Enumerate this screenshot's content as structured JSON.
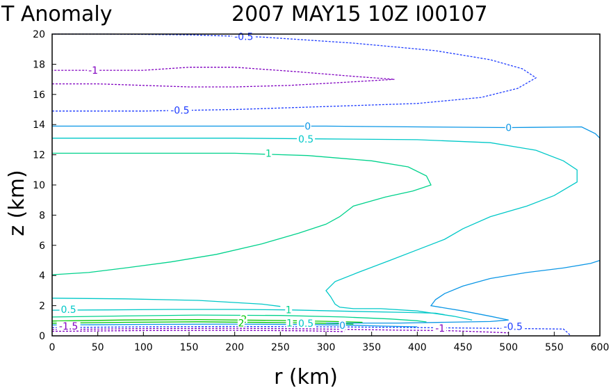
{
  "chart_data": {
    "type": "contour",
    "title_left": "T Anomaly",
    "title_right": "2007 MAY15 10Z   I00107",
    "xlabel": "r (km)",
    "ylabel": "z (km)",
    "xlim": [
      0,
      600
    ],
    "ylim": [
      0,
      20
    ],
    "x_ticks": [
      "0",
      "50",
      "100",
      "150",
      "200",
      "250",
      "300",
      "350",
      "400",
      "450",
      "500",
      "550",
      "600"
    ],
    "y_ticks": [
      "0",
      "2",
      "4",
      "6",
      "8",
      "10",
      "12",
      "14",
      "16",
      "18",
      "20"
    ],
    "x_tick_values": [
      0,
      50,
      100,
      150,
      200,
      250,
      300,
      350,
      400,
      450,
      500,
      550,
      600
    ],
    "y_tick_values": [
      0,
      2,
      4,
      6,
      8,
      10,
      12,
      14,
      16,
      18,
      20
    ],
    "colors": {
      "neg1_5": "#8000c0",
      "neg1": "#8000c0",
      "neg0_5": "#1e3cff",
      "zero": "#0a96e6",
      "pos0_5": "#00c8c8",
      "pos1": "#00d28c",
      "pos2": "#00c800"
    },
    "contours": [
      {
        "level": "-0.5",
        "color_key": "neg0_5",
        "dashed": true,
        "closed": false,
        "points": [
          [
            0,
            14.9
          ],
          [
            100,
            14.9
          ],
          [
            200,
            15.0
          ],
          [
            300,
            15.2
          ],
          [
            400,
            15.4
          ],
          [
            470,
            15.8
          ],
          [
            510,
            16.4
          ],
          [
            530,
            17.1
          ],
          [
            515,
            17.7
          ],
          [
            480,
            18.3
          ],
          [
            420,
            18.9
          ],
          [
            330,
            19.4
          ],
          [
            230,
            19.8
          ],
          [
            150,
            19.95
          ],
          [
            60,
            20.0
          ],
          [
            0,
            20.0
          ]
        ]
      },
      {
        "level": "-1",
        "color_key": "neg1",
        "dashed": true,
        "closed": false,
        "points": [
          [
            0,
            16.7
          ],
          [
            50,
            16.7
          ],
          [
            100,
            16.6
          ],
          [
            150,
            16.5
          ],
          [
            200,
            16.5
          ],
          [
            260,
            16.6
          ],
          [
            320,
            16.8
          ],
          [
            375,
            17.0
          ],
          [
            330,
            17.2
          ],
          [
            270,
            17.5
          ],
          [
            200,
            17.8
          ],
          [
            150,
            17.8
          ],
          [
            100,
            17.6
          ],
          [
            50,
            17.6
          ],
          [
            0,
            17.6
          ]
        ]
      },
      {
        "level": "0",
        "color_key": "zero",
        "dashed": false,
        "closed": false,
        "points": [
          [
            0,
            13.9
          ],
          [
            100,
            13.9
          ],
          [
            200,
            13.9
          ],
          [
            300,
            13.9
          ],
          [
            400,
            13.85
          ],
          [
            500,
            13.8
          ],
          [
            580,
            13.85
          ],
          [
            595,
            13.4
          ],
          [
            600,
            13.1
          ]
        ]
      },
      {
        "level": "0.5",
        "color_key": "pos0_5",
        "dashed": false,
        "closed": false,
        "points": [
          [
            0,
            13.1
          ],
          [
            100,
            13.1
          ],
          [
            200,
            13.1
          ],
          [
            300,
            13.05
          ],
          [
            400,
            13.0
          ],
          [
            480,
            12.8
          ],
          [
            530,
            12.3
          ],
          [
            560,
            11.6
          ],
          [
            575,
            11.0
          ],
          [
            575,
            10.2
          ],
          [
            550,
            9.3
          ],
          [
            520,
            8.6
          ],
          [
            480,
            7.9
          ],
          [
            450,
            7.1
          ],
          [
            430,
            6.4
          ],
          [
            400,
            5.7
          ],
          [
            370,
            5.0
          ],
          [
            335,
            4.2
          ],
          [
            310,
            3.6
          ],
          [
            300,
            3.0
          ],
          [
            305,
            2.6
          ],
          [
            310,
            2.1
          ],
          [
            315,
            1.9
          ],
          [
            330,
            1.8
          ],
          [
            360,
            1.8
          ],
          [
            400,
            1.65
          ],
          [
            440,
            1.3
          ],
          [
            460,
            1.05
          ]
        ]
      },
      {
        "level": "1",
        "color_key": "pos1",
        "dashed": false,
        "closed": false,
        "points": [
          [
            0,
            12.1
          ],
          [
            100,
            12.1
          ],
          [
            200,
            12.1
          ],
          [
            280,
            11.95
          ],
          [
            350,
            11.6
          ],
          [
            390,
            11.2
          ],
          [
            410,
            10.6
          ],
          [
            415,
            10.0
          ],
          [
            395,
            9.6
          ],
          [
            365,
            9.2
          ],
          [
            330,
            8.6
          ],
          [
            315,
            7.9
          ],
          [
            300,
            7.4
          ],
          [
            270,
            6.8
          ],
          [
            230,
            6.1
          ],
          [
            180,
            5.4
          ],
          [
            130,
            4.9
          ],
          [
            80,
            4.5
          ],
          [
            40,
            4.2
          ],
          [
            0,
            4.05
          ]
        ]
      },
      {
        "level": "0.5",
        "color_key": "pos0_5",
        "dashed": false,
        "closed": false,
        "points": [
          [
            0,
            2.5
          ],
          [
            80,
            2.45
          ],
          [
            160,
            2.35
          ],
          [
            230,
            2.1
          ],
          [
            250,
            1.95
          ]
        ]
      },
      {
        "level": "0.5",
        "color_key": "pos0_5",
        "dashed": false,
        "closed": false,
        "points": [
          [
            0,
            1.7
          ],
          [
            60,
            1.72
          ],
          [
            130,
            1.75
          ],
          [
            200,
            1.75
          ],
          [
            260,
            1.72
          ],
          [
            330,
            1.62
          ],
          [
            390,
            1.55
          ],
          [
            420,
            1.5
          ],
          [
            430,
            1.4
          ]
        ]
      },
      {
        "level": "1",
        "color_key": "pos1",
        "dashed": false,
        "closed": false,
        "points": [
          [
            0,
            1.25
          ],
          [
            80,
            1.32
          ],
          [
            160,
            1.38
          ],
          [
            250,
            1.35
          ],
          [
            320,
            1.25
          ],
          [
            370,
            1.12
          ],
          [
            400,
            1.0
          ],
          [
            410,
            0.92
          ]
        ]
      },
      {
        "level": "2",
        "color_key": "pos2",
        "dashed": false,
        "closed": false,
        "points": [
          [
            0,
            0.98
          ],
          [
            80,
            1.05
          ],
          [
            160,
            1.08
          ],
          [
            250,
            1.02
          ],
          [
            310,
            0.95
          ],
          [
            340,
            0.9
          ]
        ]
      },
      {
        "level": "2",
        "color_key": "pos2",
        "dashed": false,
        "closed": false,
        "points": [
          [
            0,
            0.84
          ],
          [
            80,
            0.9
          ],
          [
            160,
            0.93
          ],
          [
            250,
            0.88
          ],
          [
            310,
            0.82
          ],
          [
            330,
            0.78
          ]
        ]
      },
      {
        "level": "0",
        "color_key": "zero",
        "dashed": false,
        "closed": false,
        "points": [
          [
            0,
            0.72
          ],
          [
            100,
            0.76
          ],
          [
            200,
            0.78
          ],
          [
            280,
            0.75
          ],
          [
            330,
            0.7
          ],
          [
            360,
            0.65
          ],
          [
            400,
            0.6
          ]
        ]
      },
      {
        "level": "0",
        "color_key": "zero",
        "dashed": false,
        "closed": false,
        "points": [
          [
            600,
            5.0
          ],
          [
            590,
            4.8
          ],
          [
            560,
            4.5
          ],
          [
            520,
            4.2
          ],
          [
            480,
            3.8
          ],
          [
            450,
            3.3
          ],
          [
            430,
            2.8
          ],
          [
            420,
            2.4
          ],
          [
            415,
            2.0
          ],
          [
            425,
            1.9
          ],
          [
            450,
            1.65
          ],
          [
            480,
            1.3
          ],
          [
            500,
            1.05
          ],
          [
            480,
            0.95
          ],
          [
            430,
            0.9
          ],
          [
            380,
            0.85
          ],
          [
            330,
            0.85
          ],
          [
            300,
            0.85
          ]
        ]
      },
      {
        "level": "-0.5",
        "color_key": "neg0_5",
        "dashed": true,
        "closed": false,
        "points": [
          [
            0,
            0.55
          ],
          [
            100,
            0.6
          ],
          [
            200,
            0.62
          ],
          [
            300,
            0.6
          ],
          [
            400,
            0.55
          ],
          [
            480,
            0.5
          ],
          [
            560,
            0.45
          ],
          [
            565,
            0.2
          ],
          [
            568,
            0.0
          ]
        ]
      },
      {
        "level": "-1",
        "color_key": "neg1",
        "dashed": true,
        "closed": false,
        "points": [
          [
            0,
            0.42
          ],
          [
            100,
            0.48
          ],
          [
            200,
            0.5
          ],
          [
            300,
            0.45
          ],
          [
            380,
            0.38
          ],
          [
            430,
            0.35
          ],
          [
            480,
            0.25
          ],
          [
            500,
            0.2
          ]
        ]
      },
      {
        "level": "-1.5",
        "color_key": "neg1_5",
        "dashed": true,
        "closed": false,
        "points": [
          [
            0,
            0.3
          ],
          [
            100,
            0.35
          ],
          [
            200,
            0.37
          ],
          [
            280,
            0.33
          ],
          [
            320,
            0.28
          ]
        ]
      }
    ],
    "labels": [
      {
        "text": "-0.5",
        "x": 210,
        "y": 19.85,
        "color_key": "neg0_5"
      },
      {
        "text": "-1",
        "x": 45,
        "y": 17.6,
        "color_key": "neg1"
      },
      {
        "text": "-0.5",
        "x": 140,
        "y": 14.95,
        "color_key": "neg0_5"
      },
      {
        "text": "0",
        "x": 280,
        "y": 13.9,
        "color_key": "zero"
      },
      {
        "text": "0",
        "x": 500,
        "y": 13.8,
        "color_key": "zero"
      },
      {
        "text": "0.5",
        "x": 278,
        "y": 13.05,
        "color_key": "pos0_5"
      },
      {
        "text": "1",
        "x": 237,
        "y": 12.1,
        "color_key": "pos1"
      },
      {
        "text": "0.5",
        "x": 18,
        "y": 1.75,
        "color_key": "pos0_5"
      },
      {
        "text": "1",
        "x": 259,
        "y": 1.73,
        "color_key": "pos1"
      },
      {
        "text": "2",
        "x": 210,
        "y": 1.1,
        "color_key": "pos2"
      },
      {
        "text": "2",
        "x": 207,
        "y": 0.85,
        "color_key": "pos2"
      },
      {
        "text": "1",
        "x": 260,
        "y": 0.85,
        "color_key": "pos1"
      },
      {
        "text": "0.5",
        "x": 278,
        "y": 0.82,
        "color_key": "pos0_5"
      },
      {
        "text": "0",
        "x": 318,
        "y": 0.68,
        "color_key": "zero"
      },
      {
        "text": "-1.5",
        "x": 18,
        "y": 0.65,
        "color_key": "neg1_5"
      },
      {
        "text": "-1",
        "x": 425,
        "y": 0.5,
        "color_key": "neg1"
      },
      {
        "text": "-0.5",
        "x": 505,
        "y": 0.62,
        "color_key": "neg0_5"
      }
    ]
  }
}
